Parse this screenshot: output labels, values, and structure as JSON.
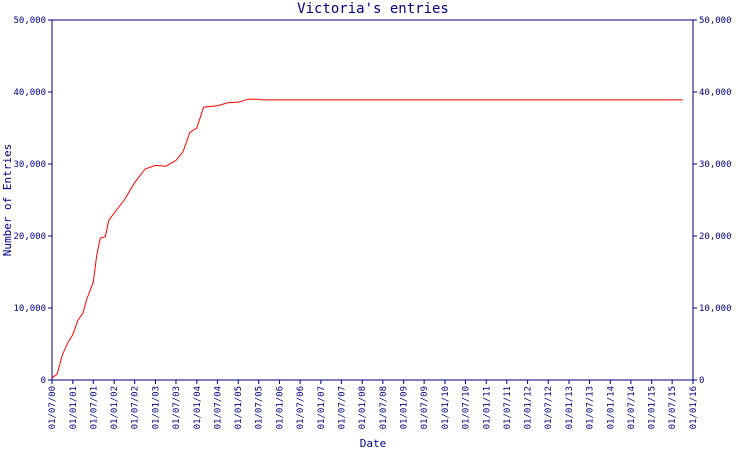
{
  "chart_data": {
    "type": "line",
    "title": "Victoria's entries",
    "x_label": "Date",
    "y_label": "Number of Entries",
    "x": [
      "2000-07-01",
      "2000-08-15",
      "2000-10-01",
      "2000-11-15",
      "2001-01-01",
      "2001-02-15",
      "2001-04-01",
      "2001-05-01",
      "2001-07-01",
      "2001-08-01",
      "2001-09-01",
      "2001-10-15",
      "2001-11-15",
      "2002-01-01",
      "2002-04-01",
      "2002-07-01",
      "2002-10-01",
      "2003-01-01",
      "2003-04-01",
      "2003-07-01",
      "2003-09-01",
      "2003-11-01",
      "2004-01-01",
      "2004-03-01",
      "2004-07-01",
      "2004-10-01",
      "2005-01-01",
      "2005-04-01",
      "2005-07-01",
      "2005-08-01",
      "2015-10-01"
    ],
    "series": [
      {
        "color": "#ff0000",
        "values": [
          300,
          800,
          3500,
          5100,
          6300,
          8300,
          9300,
          11100,
          13600,
          17400,
          19700,
          19900,
          22200,
          23200,
          25000,
          27400,
          29300,
          29800,
          29700,
          30500,
          31700,
          34400,
          35000,
          37900,
          38100,
          38500,
          38600,
          39000,
          39000,
          38900,
          38900
        ]
      }
    ],
    "xlim": [
      "2000-07-01",
      "2016-01-01"
    ],
    "xticks": [
      {
        "value": "2000-07-01",
        "label": "01/07/00"
      },
      {
        "value": "2001-01-01",
        "label": "01/01/01"
      },
      {
        "value": "2001-07-01",
        "label": "01/07/01"
      },
      {
        "value": "2002-01-01",
        "label": "01/01/02"
      },
      {
        "value": "2002-07-01",
        "label": "01/07/02"
      },
      {
        "value": "2003-01-01",
        "label": "01/01/03"
      },
      {
        "value": "2003-07-01",
        "label": "01/07/03"
      },
      {
        "value": "2004-01-01",
        "label": "01/01/04"
      },
      {
        "value": "2004-07-01",
        "label": "01/07/04"
      },
      {
        "value": "2005-01-01",
        "label": "01/01/05"
      },
      {
        "value": "2005-07-01",
        "label": "01/07/05"
      },
      {
        "value": "2006-01-01",
        "label": "01/01/06"
      },
      {
        "value": "2006-07-01",
        "label": "01/07/06"
      },
      {
        "value": "2007-01-01",
        "label": "01/01/07"
      },
      {
        "value": "2007-07-01",
        "label": "01/07/07"
      },
      {
        "value": "2008-01-01",
        "label": "01/01/08"
      },
      {
        "value": "2008-07-01",
        "label": "01/07/08"
      },
      {
        "value": "2009-01-01",
        "label": "01/01/09"
      },
      {
        "value": "2009-07-01",
        "label": "01/07/09"
      },
      {
        "value": "2010-01-01",
        "label": "01/01/10"
      },
      {
        "value": "2010-07-01",
        "label": "01/07/10"
      },
      {
        "value": "2011-01-01",
        "label": "01/01/11"
      },
      {
        "value": "2011-07-01",
        "label": "01/07/11"
      },
      {
        "value": "2012-01-01",
        "label": "01/01/12"
      },
      {
        "value": "2012-07-01",
        "label": "01/07/12"
      },
      {
        "value": "2013-01-01",
        "label": "01/01/13"
      },
      {
        "value": "2013-07-01",
        "label": "01/07/13"
      },
      {
        "value": "2014-01-01",
        "label": "01/01/14"
      },
      {
        "value": "2014-07-01",
        "label": "01/07/14"
      },
      {
        "value": "2015-01-01",
        "label": "01/01/15"
      },
      {
        "value": "2015-07-01",
        "label": "01/07/15"
      },
      {
        "value": "2016-01-01",
        "label": "01/01/16"
      }
    ],
    "ylim": [
      0,
      50000
    ],
    "yticks": [
      0,
      {
        "value": 10000,
        "label": "10,000"
      },
      {
        "value": 20000,
        "label": "20,000"
      },
      {
        "value": 30000,
        "label": "30,000"
      },
      {
        "value": 40000,
        "label": "40,000"
      },
      {
        "value": 50000,
        "label": "50,000"
      }
    ],
    "y2lim": [
      0,
      50000
    ],
    "y2ticks": [
      0,
      {
        "value": 10000,
        "label": "10,000"
      },
      {
        "value": 20000,
        "label": "20,000"
      },
      {
        "value": 30000,
        "label": "30,000"
      },
      {
        "value": 40000,
        "label": "40,000"
      },
      {
        "value": 50000,
        "label": "50,000"
      }
    ],
    "axis_color": "#000080"
  }
}
